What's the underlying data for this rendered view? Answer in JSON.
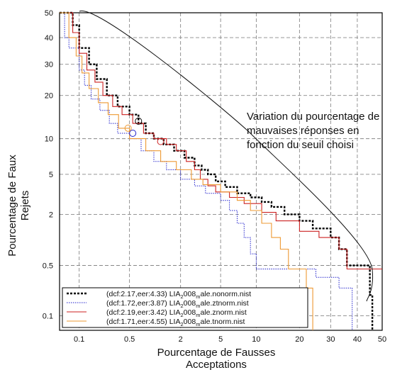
{
  "chart_data": {
    "type": "line",
    "title": "",
    "xlabel": "Pourcentage de Fausses Acceptations",
    "ylabel": "Pourcentage de Faux Rejets",
    "x_scale": "probit",
    "y_scale": "probit",
    "xlim": [
      0.05,
      50
    ],
    "ylim": [
      0.06,
      50
    ],
    "x_ticks": [
      0.1,
      0.5,
      2,
      5,
      10,
      20,
      30,
      40,
      50
    ],
    "x_tick_labels": [
      "0.1",
      "0.5",
      "2",
      "5",
      "10",
      "20",
      "30",
      "40",
      "50"
    ],
    "y_ticks": [
      0.1,
      0.5,
      2,
      5,
      10,
      20,
      30,
      40,
      50
    ],
    "y_tick_labels": [
      "0.1",
      "0.5",
      "2",
      "5",
      "10",
      "20",
      "30",
      "40",
      "50"
    ],
    "grid": true,
    "legend_position": "bottom-left",
    "annotation": {
      "lines": [
        "Variation du pourcentage de",
        "mauvaises réponses en",
        "fonction du seuil choisi"
      ]
    },
    "series": [
      {
        "label_pre": "(dcf:2.17,eer:4.33)  LIA",
        "label_sub1": "2",
        "label_mid": "008",
        "label_sub2": "m",
        "label_post": "ale.nonorm.nist",
        "color": "#000000",
        "style": "dashed-thick",
        "marker": [
          0.65,
          13.5
        ],
        "points": [
          [
            0.05,
            50
          ],
          [
            0.08,
            50
          ],
          [
            0.08,
            45
          ],
          [
            0.1,
            45
          ],
          [
            0.1,
            36
          ],
          [
            0.14,
            36
          ],
          [
            0.14,
            30
          ],
          [
            0.18,
            30
          ],
          [
            0.18,
            25
          ],
          [
            0.25,
            25
          ],
          [
            0.25,
            20
          ],
          [
            0.35,
            20
          ],
          [
            0.35,
            17
          ],
          [
            0.5,
            17
          ],
          [
            0.5,
            15
          ],
          [
            0.65,
            15
          ],
          [
            0.65,
            13
          ],
          [
            0.8,
            13
          ],
          [
            0.8,
            11
          ],
          [
            1.0,
            11
          ],
          [
            1.0,
            10
          ],
          [
            1.3,
            10
          ],
          [
            1.3,
            9
          ],
          [
            1.7,
            9
          ],
          [
            1.7,
            8
          ],
          [
            2.2,
            8
          ],
          [
            2.2,
            7
          ],
          [
            2.8,
            7
          ],
          [
            2.8,
            6
          ],
          [
            3.3,
            6
          ],
          [
            3.3,
            5.5
          ],
          [
            3.8,
            5.5
          ],
          [
            3.8,
            5
          ],
          [
            4.5,
            5
          ],
          [
            4.5,
            4.3
          ],
          [
            5.5,
            4.3
          ],
          [
            5.5,
            3.8
          ],
          [
            7,
            3.8
          ],
          [
            7,
            3.3
          ],
          [
            9,
            3.3
          ],
          [
            9,
            3.0
          ],
          [
            11,
            3.0
          ],
          [
            11,
            2.7
          ],
          [
            13,
            2.7
          ],
          [
            13,
            2.4
          ],
          [
            16,
            2.4
          ],
          [
            16,
            2.0
          ],
          [
            20,
            2.0
          ],
          [
            20,
            1.7
          ],
          [
            24,
            1.7
          ],
          [
            24,
            1.4
          ],
          [
            30,
            1.4
          ],
          [
            30,
            1.1
          ],
          [
            33,
            1.1
          ],
          [
            33,
            0.8
          ],
          [
            36,
            0.8
          ],
          [
            36,
            0.5
          ],
          [
            45,
            0.5
          ],
          [
            45,
            0.2
          ],
          [
            46,
            0.2
          ],
          [
            46,
            0.06
          ]
        ]
      },
      {
        "label_pre": "(dcf:1.72,eer:3.87)  LIA",
        "label_sub1": "2",
        "label_mid": "008",
        "label_sub2": "m",
        "label_post": "ale.ztnorm.nist",
        "color": "#2222cc",
        "style": "dotted",
        "marker": [
          0.55,
          11
        ],
        "points": [
          [
            0.05,
            50
          ],
          [
            0.06,
            50
          ],
          [
            0.06,
            40
          ],
          [
            0.07,
            40
          ],
          [
            0.07,
            36
          ],
          [
            0.1,
            36
          ],
          [
            0.1,
            28
          ],
          [
            0.12,
            28
          ],
          [
            0.12,
            23
          ],
          [
            0.15,
            23
          ],
          [
            0.15,
            19
          ],
          [
            0.2,
            19
          ],
          [
            0.2,
            16
          ],
          [
            0.27,
            16
          ],
          [
            0.27,
            13
          ],
          [
            0.35,
            13
          ],
          [
            0.35,
            11
          ],
          [
            0.5,
            11
          ],
          [
            0.5,
            10
          ],
          [
            0.7,
            10
          ],
          [
            0.7,
            8
          ],
          [
            1.0,
            8
          ],
          [
            1.0,
            6.5
          ],
          [
            1.4,
            6.5
          ],
          [
            1.4,
            5.5
          ],
          [
            2.0,
            5.5
          ],
          [
            2.0,
            4.5
          ],
          [
            2.8,
            4.5
          ],
          [
            2.8,
            3.9
          ],
          [
            3.6,
            3.9
          ],
          [
            3.6,
            3.3
          ],
          [
            5,
            3.3
          ],
          [
            5,
            2.8
          ],
          [
            6,
            2.8
          ],
          [
            6,
            2.2
          ],
          [
            7,
            2.2
          ],
          [
            7,
            1.6
          ],
          [
            8,
            1.6
          ],
          [
            8,
            1.1
          ],
          [
            9,
            1.1
          ],
          [
            9,
            0.7
          ],
          [
            10,
            0.7
          ],
          [
            10,
            0.45
          ],
          [
            25,
            0.45
          ],
          [
            25,
            0.35
          ],
          [
            33,
            0.35
          ],
          [
            33,
            0.25
          ],
          [
            38,
            0.25
          ],
          [
            38,
            0.06
          ]
        ]
      },
      {
        "label_pre": "(dcf:2.19,eer:3.42)  LIA",
        "label_sub1": "2",
        "label_mid": "008",
        "label_sub2": "m",
        "label_post": "ale.znorm.nist",
        "color": "#cc2222",
        "style": "solid",
        "marker": [
          1.2,
          9.5
        ],
        "points": [
          [
            0.05,
            50
          ],
          [
            0.08,
            50
          ],
          [
            0.08,
            42
          ],
          [
            0.1,
            42
          ],
          [
            0.1,
            34
          ],
          [
            0.13,
            34
          ],
          [
            0.13,
            28
          ],
          [
            0.17,
            28
          ],
          [
            0.17,
            24
          ],
          [
            0.22,
            24
          ],
          [
            0.22,
            20
          ],
          [
            0.3,
            20
          ],
          [
            0.3,
            17
          ],
          [
            0.4,
            17
          ],
          [
            0.4,
            15
          ],
          [
            0.55,
            15
          ],
          [
            0.55,
            13
          ],
          [
            0.75,
            13
          ],
          [
            0.75,
            11
          ],
          [
            1.0,
            11
          ],
          [
            1.0,
            10
          ],
          [
            1.4,
            10
          ],
          [
            1.4,
            9
          ],
          [
            1.8,
            9
          ],
          [
            1.8,
            8
          ],
          [
            2.3,
            8
          ],
          [
            2.3,
            6.5
          ],
          [
            2.8,
            6.5
          ],
          [
            2.8,
            5.5
          ],
          [
            3.2,
            5.5
          ],
          [
            3.2,
            4.5
          ],
          [
            3.8,
            4.5
          ],
          [
            3.8,
            3.9
          ],
          [
            4.5,
            3.9
          ],
          [
            4.5,
            3.4
          ],
          [
            6,
            3.4
          ],
          [
            6,
            3.0
          ],
          [
            8,
            3.0
          ],
          [
            8,
            2.6
          ],
          [
            11,
            2.6
          ],
          [
            11,
            2.1
          ],
          [
            14,
            2.1
          ],
          [
            14,
            1.7
          ],
          [
            20,
            1.7
          ],
          [
            20,
            1.3
          ],
          [
            26,
            1.3
          ],
          [
            26,
            1.1
          ],
          [
            33,
            1.1
          ],
          [
            33,
            0.8
          ],
          [
            36,
            0.8
          ],
          [
            36,
            0.45
          ],
          [
            50,
            0.45
          ]
        ]
      },
      {
        "label_pre": "(dcf:1.71,eer:4.55)  LIA",
        "label_sub1": "2",
        "label_mid": "008",
        "label_sub2": "m",
        "label_post": "ale.tnorm.nist",
        "color": "#ee9933",
        "style": "solid",
        "marker": [
          0.48,
          12
        ],
        "points": [
          [
            0.05,
            50
          ],
          [
            0.07,
            50
          ],
          [
            0.07,
            40
          ],
          [
            0.09,
            40
          ],
          [
            0.09,
            33
          ],
          [
            0.11,
            33
          ],
          [
            0.11,
            27
          ],
          [
            0.14,
            27
          ],
          [
            0.14,
            22
          ],
          [
            0.19,
            22
          ],
          [
            0.19,
            18
          ],
          [
            0.26,
            18
          ],
          [
            0.26,
            15
          ],
          [
            0.36,
            15
          ],
          [
            0.36,
            12
          ],
          [
            0.5,
            12
          ],
          [
            0.5,
            10
          ],
          [
            0.8,
            10
          ],
          [
            0.8,
            8
          ],
          [
            1.2,
            8
          ],
          [
            1.2,
            6.5
          ],
          [
            1.8,
            6.5
          ],
          [
            1.8,
            5.5
          ],
          [
            2.6,
            5.5
          ],
          [
            2.6,
            4.5
          ],
          [
            3.4,
            4.5
          ],
          [
            3.4,
            4.0
          ],
          [
            5,
            4.0
          ],
          [
            5,
            3.4
          ],
          [
            7,
            3.4
          ],
          [
            7,
            2.8
          ],
          [
            9,
            2.8
          ],
          [
            9,
            2.2
          ],
          [
            11,
            2.2
          ],
          [
            11,
            1.6
          ],
          [
            13,
            1.6
          ],
          [
            13,
            1.1
          ],
          [
            15,
            1.1
          ],
          [
            15,
            0.8
          ],
          [
            17,
            0.8
          ],
          [
            17,
            0.45
          ],
          [
            22,
            0.45
          ],
          [
            22,
            0.25
          ],
          [
            24,
            0.25
          ],
          [
            24,
            0.06
          ]
        ]
      }
    ]
  }
}
